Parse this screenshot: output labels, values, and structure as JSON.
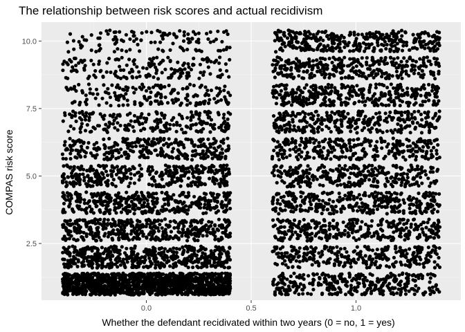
{
  "chart_data": {
    "type": "scatter",
    "title": "The relationship between risk scores and actual recidivism",
    "xlabel": "Whether the defendant recidivated within two years (0 = no, 1 = yes)",
    "ylabel": "COMPAS risk score",
    "xlim": [
      -0.5,
      1.5
    ],
    "ylim": [
      0.4,
      10.7
    ],
    "x_ticks": [
      0.0,
      0.5,
      1.0
    ],
    "x_tick_labels": [
      "0.0",
      "0.5",
      "1.0"
    ],
    "y_ticks": [
      2.5,
      5.0,
      7.5,
      10.0
    ],
    "y_tick_labels": [
      "2.5",
      "5.0",
      "7.5",
      "10.0"
    ],
    "grid": true,
    "jitter": {
      "x": 0.4,
      "y": 0.4
    },
    "groups": [
      {
        "x": 0,
        "counts_by_score": [
          1400,
          520,
          430,
          400,
          360,
          300,
          220,
          180,
          170,
          120
        ]
      },
      {
        "x": 1,
        "counts_by_score": [
          330,
          300,
          310,
          350,
          310,
          300,
          310,
          340,
          330,
          350
        ]
      }
    ],
    "colors": {
      "panel": "#ebebeb",
      "grid_major": "#ffffff",
      "grid_minor": "#f5f5f5",
      "point": "#000000",
      "tick": "#333333"
    }
  }
}
